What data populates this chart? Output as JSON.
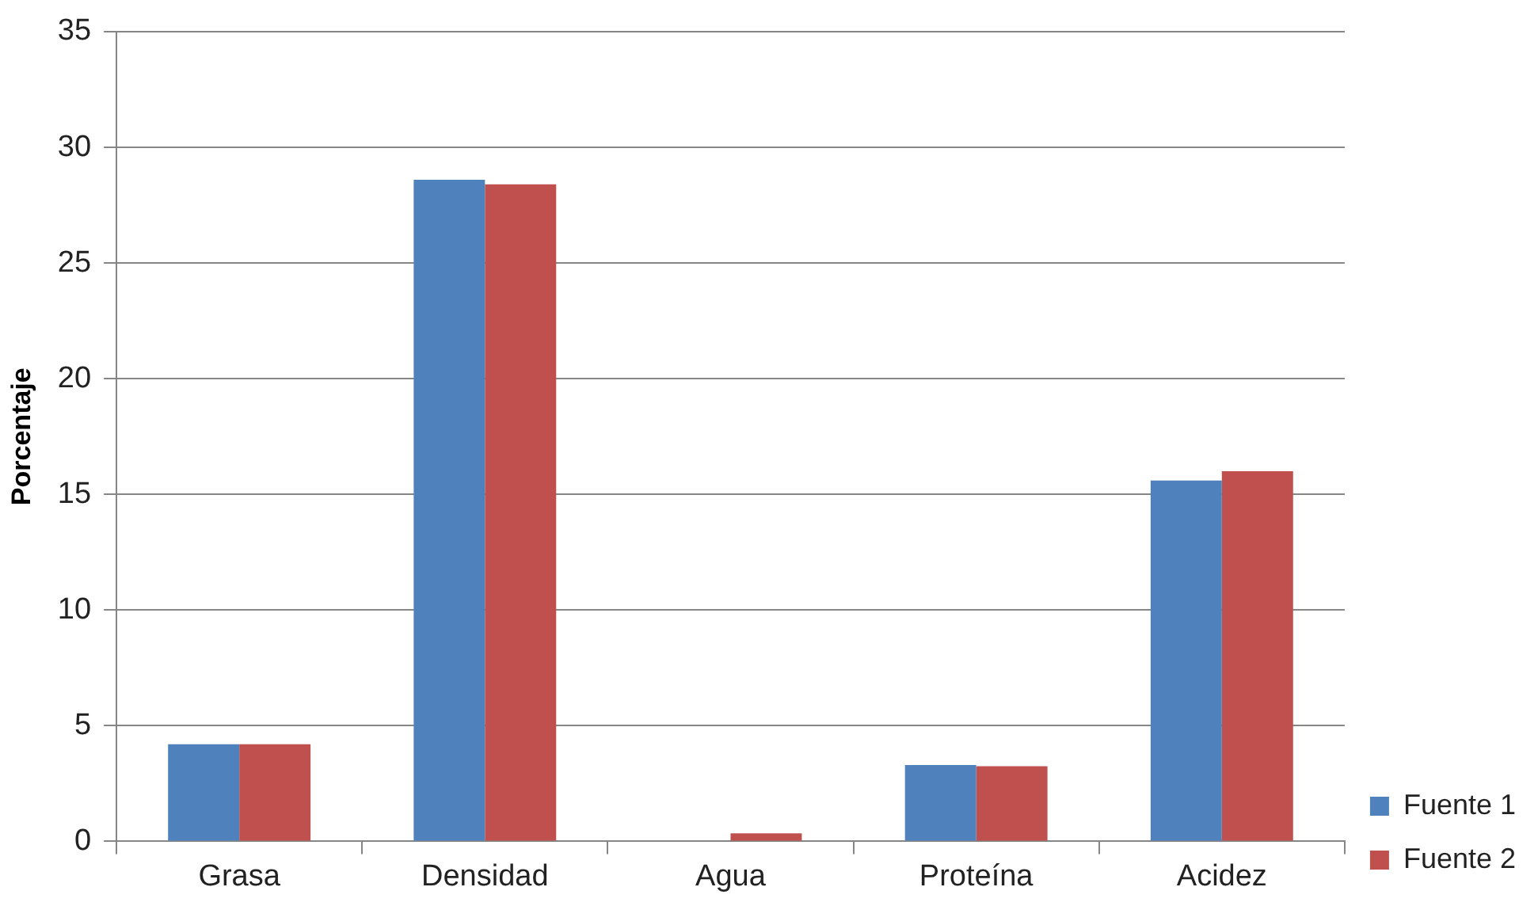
{
  "chart_data": {
    "type": "bar",
    "ylabel": "Porcentaje",
    "categories": [
      "Grasa",
      "Densidad",
      "Agua",
      "Proteína",
      "Acidez"
    ],
    "series": [
      {
        "name": "Fuente 1",
        "color": "#4f81bd",
        "values": [
          4.2,
          28.6,
          0,
          3.3,
          15.6
        ]
      },
      {
        "name": "Fuente 2",
        "color": "#c0504d",
        "values": [
          4.2,
          28.4,
          0.35,
          3.25,
          16.0
        ]
      }
    ],
    "ylim": [
      0,
      35
    ],
    "yticks": [
      0,
      5,
      10,
      15,
      20,
      25,
      30,
      35
    ],
    "grid": "y",
    "legend": "bottom right"
  }
}
